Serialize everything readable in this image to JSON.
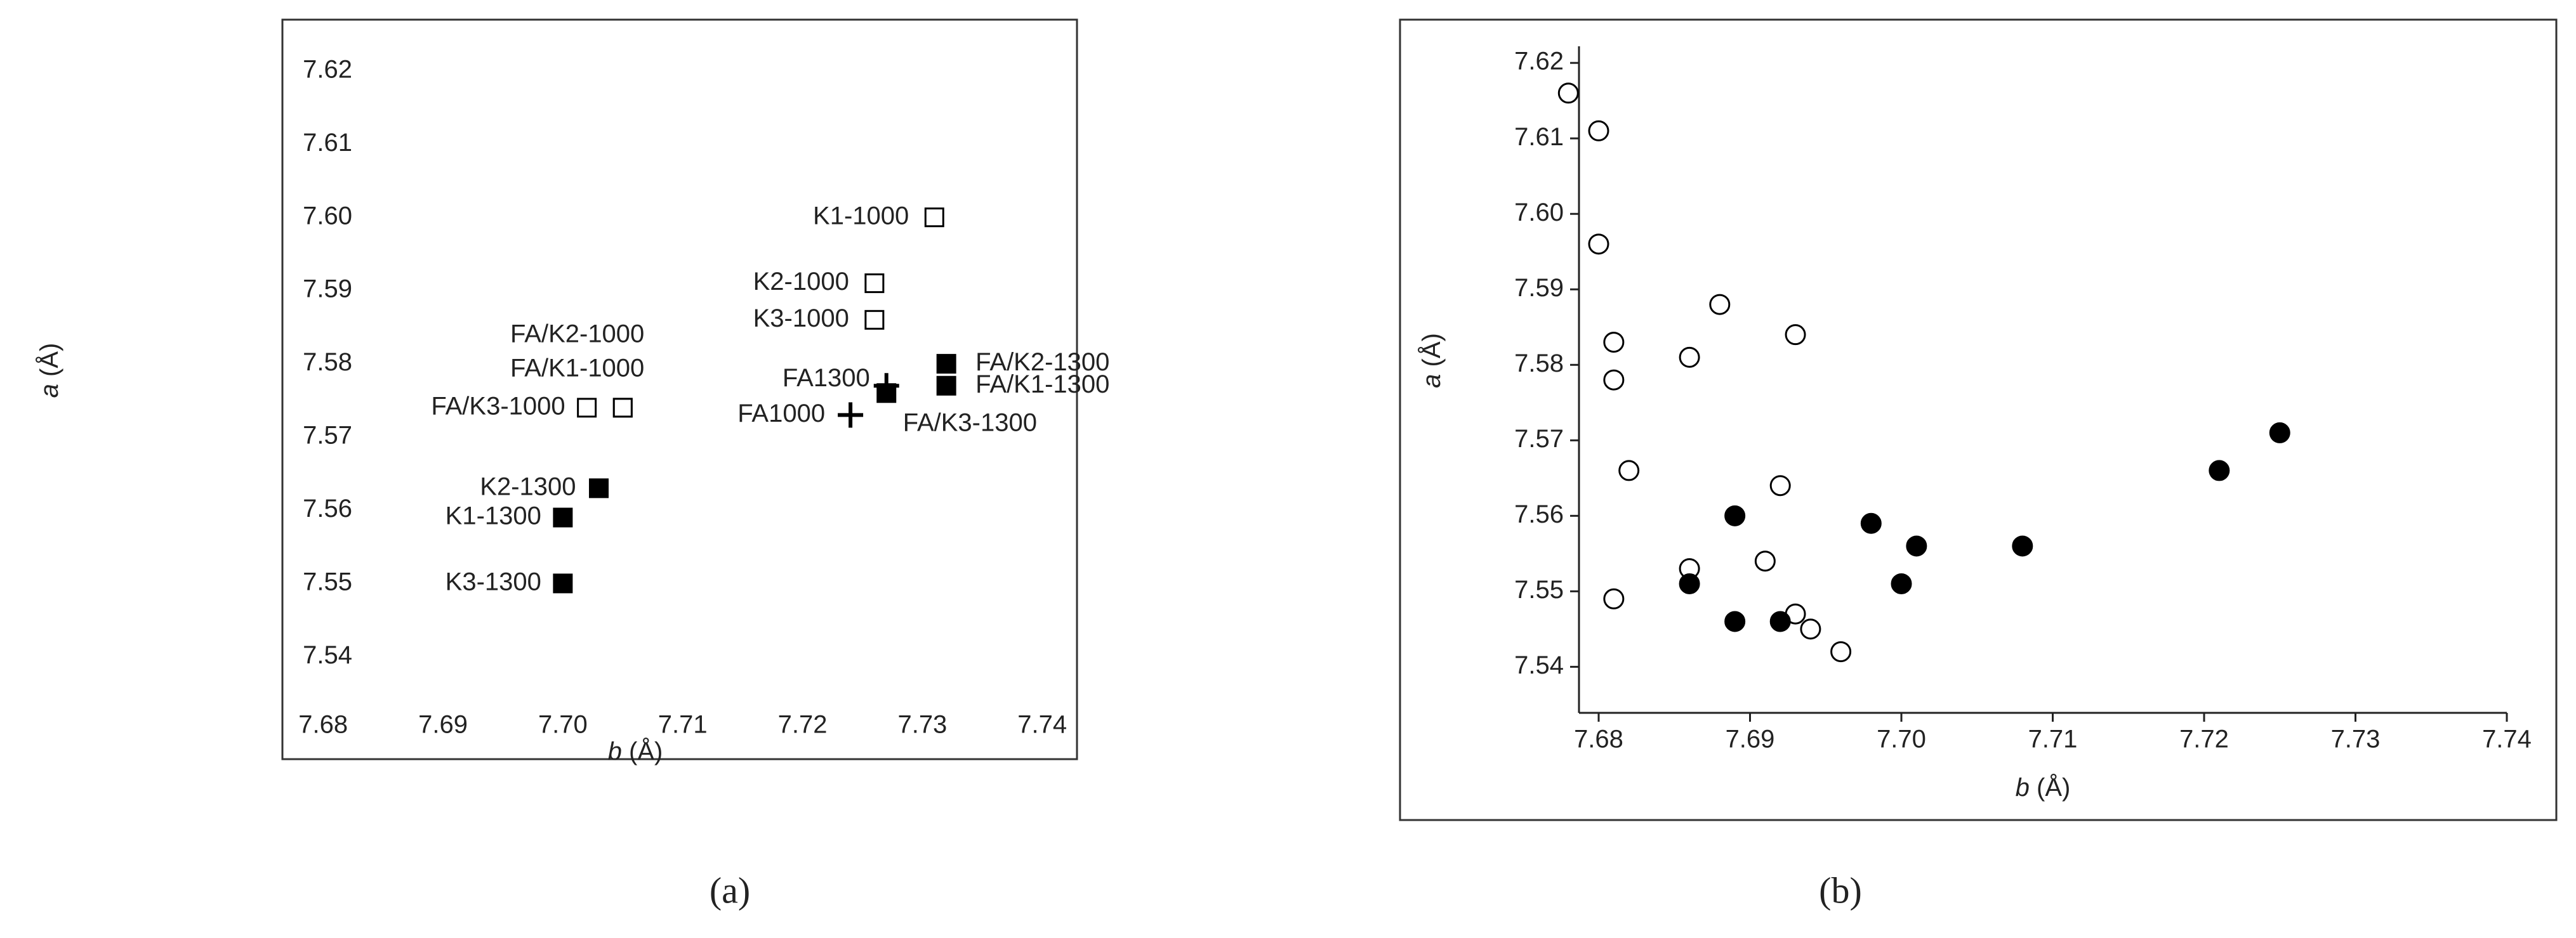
{
  "chart_data": [
    {
      "type": "scatter",
      "caption": "(a)",
      "xlabel_var": "b",
      "xlabel_unit": "(Å)",
      "ylabel_var": "a",
      "ylabel_unit": "(Å)",
      "xlim": [
        7.6766,
        7.7429
      ],
      "ylim": [
        7.526,
        7.627
      ],
      "xticks": [
        7.68,
        7.69,
        {
          "value": 7.7,
          "label": "7.70"
        },
        7.71,
        7.72,
        7.73,
        7.74
      ],
      "yticks": [
        7.54,
        {
          "value": 7.55,
          "label": "7.55"
        },
        7.56,
        7.57,
        7.58,
        7.59,
        {
          "value": 7.6,
          "label": "7.60"
        },
        7.61,
        7.62
      ],
      "points": [
        {
          "label": "K1-1000",
          "x": 7.731,
          "y": 7.6,
          "marker": "open-square"
        },
        {
          "label": "K2-1000",
          "x": 7.726,
          "y": 7.591,
          "marker": "open-square"
        },
        {
          "label": "K3-1000",
          "x": 7.726,
          "y": 7.586,
          "marker": "open-square"
        },
        {
          "label": "FA/K2-1000",
          "x": 7.705,
          "y": 7.574,
          "marker": "open-square"
        },
        {
          "label": "FA/K1-1000",
          "x": 7.705,
          "y": 7.574,
          "marker": "open-square"
        },
        {
          "label": "FA/K3-1000",
          "x": 7.702,
          "y": 7.574,
          "marker": "open-square"
        },
        {
          "label": "FA/K2-1300",
          "x": 7.732,
          "y": 7.58,
          "marker": "filled-square"
        },
        {
          "label": "FA/K1-1300",
          "x": 7.732,
          "y": 7.577,
          "marker": "filled-square"
        },
        {
          "label": "FA/K3-1300",
          "x": 7.727,
          "y": 7.576,
          "marker": "filled-square"
        },
        {
          "label": "K2-1300",
          "x": 7.703,
          "y": 7.563,
          "marker": "filled-square"
        },
        {
          "label": "K1-1300",
          "x": 7.7,
          "y": 7.559,
          "marker": "filled-square"
        },
        {
          "label": "K3-1300",
          "x": 7.7,
          "y": 7.55,
          "marker": "filled-square"
        },
        {
          "label": "FA1300",
          "x": 7.727,
          "y": 7.577,
          "marker": "plus"
        },
        {
          "label": "FA1000",
          "x": 7.724,
          "y": 7.573,
          "marker": "plus"
        }
      ]
    },
    {
      "type": "scatter",
      "caption": "(b)",
      "xlabel_var": "b",
      "xlabel_unit": "(Å)",
      "ylabel_var": "a",
      "ylabel_unit": "(Å)",
      "xlim": [
        7.6787,
        7.74
      ],
      "ylim": [
        7.5339,
        7.6222
      ],
      "xticks": [
        7.68,
        7.69,
        {
          "value": 7.7,
          "label": "7.70"
        },
        7.71,
        7.72,
        7.73,
        7.74
      ],
      "yticks": [
        7.54,
        {
          "value": 7.55,
          "label": "7.55"
        },
        7.56,
        7.57,
        7.58,
        7.59,
        {
          "value": 7.6,
          "label": "7.60"
        },
        7.61,
        7.62
      ],
      "series": [
        {
          "marker": "open-circle",
          "x": [
            7.678,
            7.68,
            7.68,
            7.688,
            7.693,
            7.681,
            7.686,
            7.681,
            7.682,
            7.692,
            7.691,
            7.686,
            7.681,
            7.693,
            7.694,
            7.696
          ],
          "y": [
            7.616,
            7.611,
            7.596,
            7.588,
            7.584,
            7.583,
            7.581,
            7.578,
            7.566,
            7.564,
            7.554,
            7.553,
            7.549,
            7.547,
            7.545,
            7.542
          ]
        },
        {
          "marker": "filled-circle",
          "x": [
            7.689,
            7.698,
            7.701,
            7.708,
            7.686,
            7.7,
            7.689,
            7.692,
            7.721,
            7.725
          ],
          "y": [
            7.56,
            7.559,
            7.556,
            7.556,
            7.551,
            7.551,
            7.546,
            7.546,
            7.566,
            7.571
          ]
        }
      ]
    }
  ]
}
